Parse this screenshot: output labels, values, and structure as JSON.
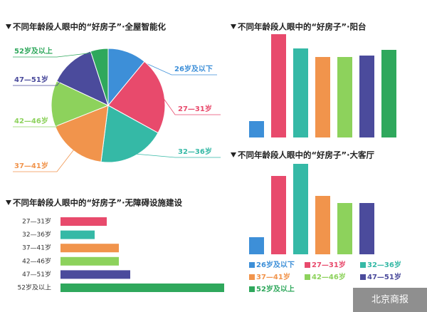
{
  "chart_data": [
    {
      "type": "pie",
      "title": "不同年龄段人眼中的“好房子”·全屋智能化",
      "categories": [
        "26岁及以下",
        "27—31岁",
        "32—36岁",
        "37—41岁",
        "42—46岁",
        "47—51岁",
        "52岁及以上"
      ],
      "values": [
        11,
        22,
        19,
        17,
        13,
        13,
        5
      ],
      "colors": [
        "#3d8fd8",
        "#e84a6c",
        "#35b9a6",
        "#f1944c",
        "#8dd25c",
        "#4b4b9c",
        "#2fa85c"
      ]
    },
    {
      "type": "bar",
      "title": "不同年龄段人眼中的“好房子”·阳台",
      "categories": [
        "26岁及以下",
        "27—31岁",
        "32—36岁",
        "37—41岁",
        "42—46岁",
        "47—51岁",
        "52岁及以上"
      ],
      "values": [
        23,
        145,
        125,
        113,
        113,
        115,
        123
      ],
      "colors": [
        "#3d8fd8",
        "#e84a6c",
        "#35b9a6",
        "#f1944c",
        "#8dd25c",
        "#4b4b9c",
        "#2fa85c"
      ]
    },
    {
      "type": "bar",
      "title": "不同年龄段人眼中的“好房子”·大客厅",
      "categories": [
        "26岁及以下",
        "27—31岁",
        "32—36岁",
        "37—41岁",
        "42—46岁",
        "47—51岁",
        "52岁及以上"
      ],
      "values": [
        24,
        110,
        127,
        82,
        72,
        72,
        null
      ],
      "colors": [
        "#3d8fd8",
        "#e84a6c",
        "#35b9a6",
        "#f1944c",
        "#8dd25c",
        "#4b4b9c",
        "#2fa85c"
      ]
    },
    {
      "type": "hbar",
      "title": "不同年龄段人眼中的“好房子”·无障碍设施建设",
      "categories": [
        "27—31岁",
        "32—36岁",
        "37—41岁",
        "42—46岁",
        "47—51岁",
        "52岁及以上"
      ],
      "values": [
        65,
        48,
        82,
        82,
        98,
        230
      ],
      "colors": [
        "#e84a6c",
        "#35b9a6",
        "#f1944c",
        "#8dd25c",
        "#4b4b9c",
        "#2fa85c"
      ]
    }
  ],
  "watermark": "北京商报"
}
